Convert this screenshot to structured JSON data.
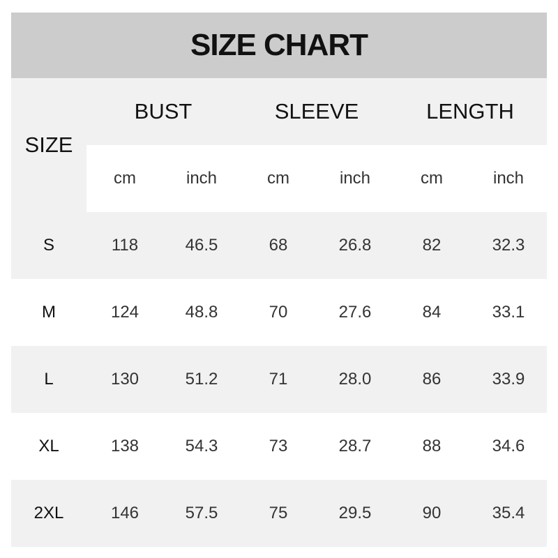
{
  "title": "SIZE CHART",
  "chart_data": {
    "type": "table",
    "title": "SIZE CHART",
    "size_header": "SIZE",
    "groups": [
      "BUST",
      "SLEEVE",
      "LENGTH"
    ],
    "units": [
      "cm",
      "inch",
      "cm",
      "inch",
      "cm",
      "inch"
    ],
    "rows": [
      {
        "size": "S",
        "values": [
          "118",
          "46.5",
          "68",
          "26.8",
          "82",
          "32.3"
        ]
      },
      {
        "size": "M",
        "values": [
          "124",
          "48.8",
          "70",
          "27.6",
          "84",
          "33.1"
        ]
      },
      {
        "size": "L",
        "values": [
          "130",
          "51.2",
          "71",
          "28.0",
          "86",
          "33.9"
        ]
      },
      {
        "size": "XL",
        "values": [
          "138",
          "54.3",
          "73",
          "28.7",
          "88",
          "34.6"
        ]
      },
      {
        "size": "2XL",
        "values": [
          "146",
          "57.5",
          "75",
          "29.5",
          "90",
          "35.4"
        ]
      }
    ]
  },
  "colors": {
    "title_band": "#cccccc",
    "stripe": "#f1f1f1",
    "background": "#ffffff"
  }
}
